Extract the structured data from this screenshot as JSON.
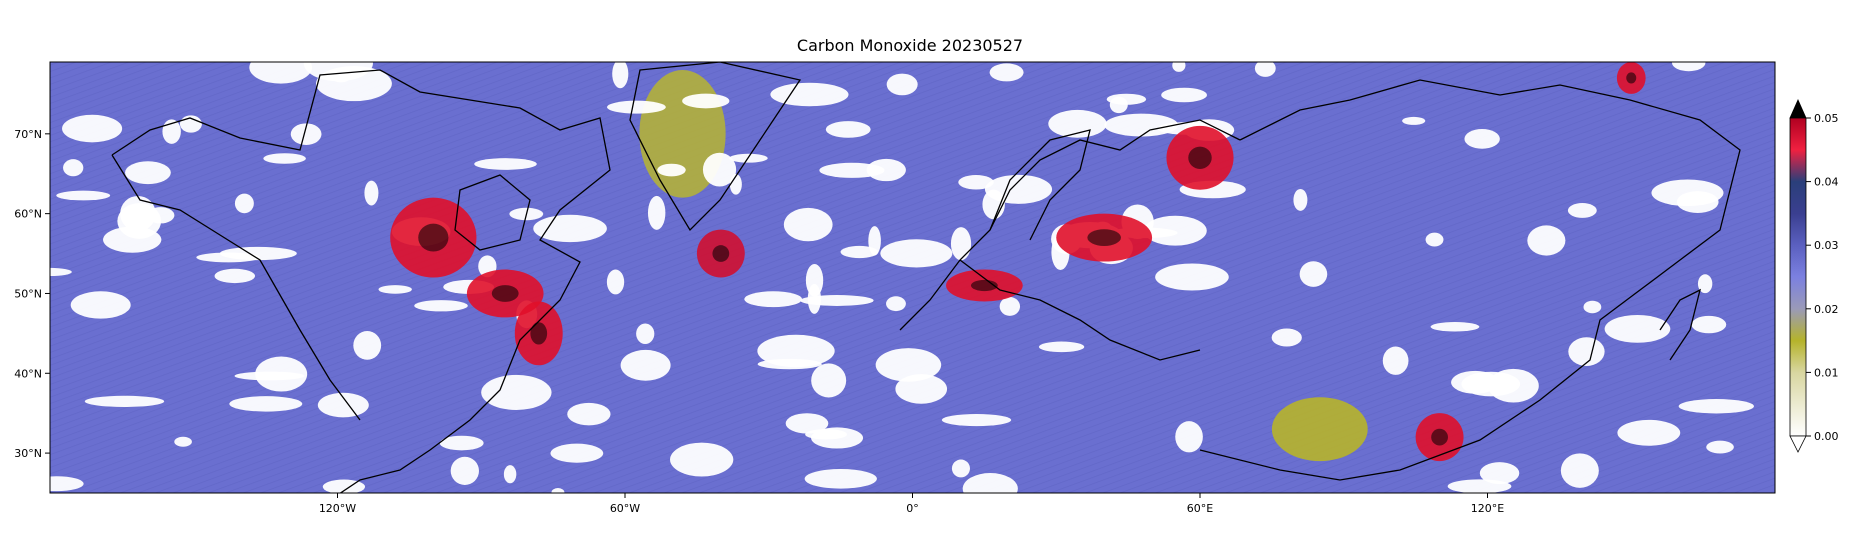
{
  "title": "Carbon Monoxide 20230527",
  "map": {
    "lon_range": [
      -180,
      180
    ],
    "lat_range": [
      25,
      79
    ],
    "lon_ticks": [
      {
        "lon": -120,
        "label": "120°W"
      },
      {
        "lon": -60,
        "label": "60°W"
      },
      {
        "lon": 0,
        "label": "0°"
      },
      {
        "lon": 60,
        "label": "60°E"
      },
      {
        "lon": 120,
        "label": "120°E"
      }
    ],
    "lat_ticks": [
      {
        "lat": 70,
        "label": "70°N"
      },
      {
        "lat": 60,
        "label": "60°N"
      },
      {
        "lat": 50,
        "label": "50°N"
      },
      {
        "lat": 40,
        "label": "40°N"
      },
      {
        "lat": 30,
        "label": "30°N"
      }
    ],
    "background_color": "#6a6fd0",
    "cloud_color": "#ffffff",
    "plumes": [
      {
        "lon": -100,
        "lat": 57,
        "rlon": 9,
        "rlat": 5,
        "color": "#e0102a"
      },
      {
        "lon": -85,
        "lat": 50,
        "rlon": 8,
        "rlat": 3,
        "color": "#e0102a"
      },
      {
        "lon": -78,
        "lat": 45,
        "rlon": 5,
        "rlat": 4,
        "color": "#e0102a"
      },
      {
        "lon": -40,
        "lat": 55,
        "rlon": 5,
        "rlat": 3,
        "color": "#d01030"
      },
      {
        "lon": 15,
        "lat": 51,
        "rlon": 8,
        "rlat": 2,
        "color": "#e0102a"
      },
      {
        "lon": 40,
        "lat": 57,
        "rlon": 10,
        "rlat": 3,
        "color": "#e0102a"
      },
      {
        "lon": 60,
        "lat": 67,
        "rlon": 7,
        "rlat": 4,
        "color": "#e0102a"
      },
      {
        "lon": 110,
        "lat": 32,
        "rlon": 5,
        "rlat": 3,
        "color": "#e0102a"
      },
      {
        "lon": 150,
        "lat": 77,
        "rlon": 3,
        "rlat": 2,
        "color": "#e0102a"
      }
    ],
    "low_regions": [
      {
        "lon": -48,
        "lat": 70,
        "rlon": 9,
        "rlat": 8,
        "color": "#b2b03a"
      },
      {
        "lon": 85,
        "lat": 33,
        "rlon": 10,
        "rlat": 4,
        "color": "#b7b42a"
      }
    ]
  },
  "colorbar": {
    "ticks": [
      "0.05",
      "0.04",
      "0.03",
      "0.02",
      "0.01",
      "0.00"
    ],
    "stops": [
      {
        "value": 0.0,
        "color": "#ffffff"
      },
      {
        "value": 0.01,
        "color": "#d8d6a0"
      },
      {
        "value": 0.015,
        "color": "#b5b32b"
      },
      {
        "value": 0.02,
        "color": "#9a9ab8"
      },
      {
        "value": 0.025,
        "color": "#7b80e0"
      },
      {
        "value": 0.03,
        "color": "#5b60c0"
      },
      {
        "value": 0.035,
        "color": "#3a3f90"
      },
      {
        "value": 0.04,
        "color": "#2a3f7a"
      },
      {
        "value": 0.045,
        "color": "#f02040"
      },
      {
        "value": 0.05,
        "color": "#b00020"
      }
    ],
    "over_color": "#000000"
  }
}
